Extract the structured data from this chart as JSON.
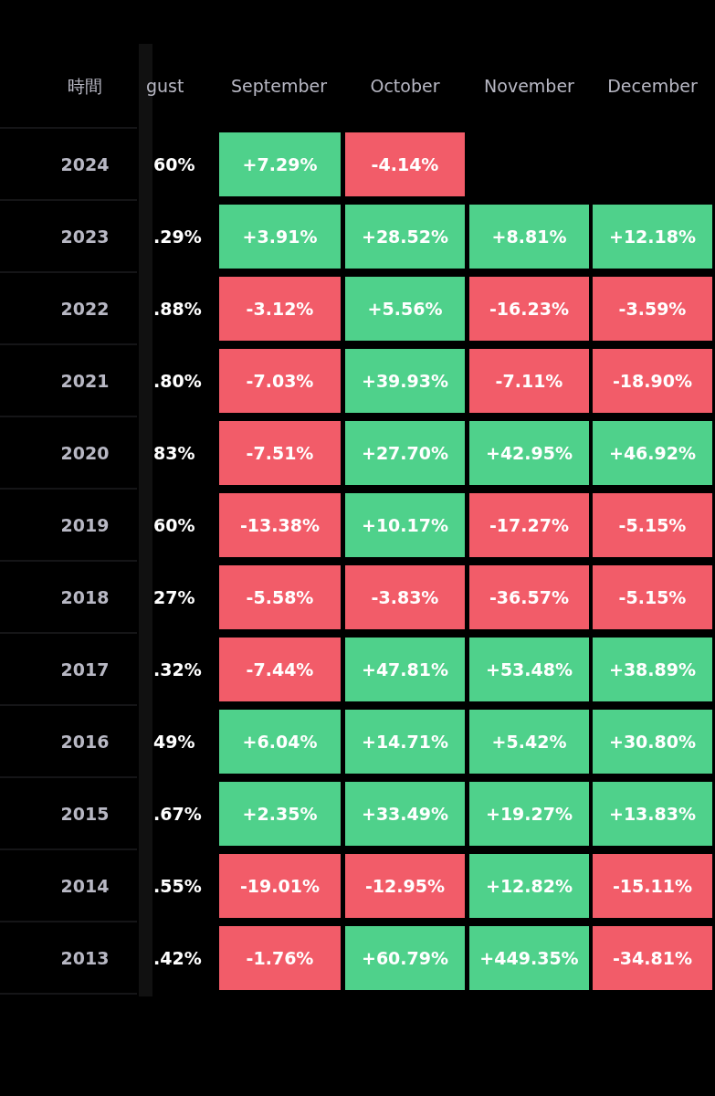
{
  "chart_data": {
    "type": "heatmap",
    "legend_title": "時間",
    "categories": [
      "gust",
      "September",
      "October",
      "November",
      "December"
    ],
    "y_categories": [
      "2024",
      "2023",
      "2022",
      "2021",
      "2020",
      "2019",
      "2018",
      "2017",
      "2016",
      "2015",
      "2014",
      "2013"
    ],
    "colors": [
      "#f25c69",
      "#4fd18b"
    ],
    "cells": [
      [
        null,
        7.29,
        -4.14,
        null,
        null
      ],
      [
        null,
        3.91,
        28.52,
        8.81,
        12.18
      ],
      [
        null,
        -3.12,
        5.56,
        -16.23,
        -3.59
      ],
      [
        null,
        -7.03,
        39.93,
        -7.11,
        -18.9
      ],
      [
        null,
        -7.51,
        27.7,
        42.95,
        46.92
      ],
      [
        null,
        -13.38,
        10.17,
        -17.27,
        -5.15
      ],
      [
        null,
        -5.58,
        -3.83,
        -36.57,
        -5.15
      ],
      [
        null,
        -7.44,
        47.81,
        53.48,
        38.89
      ],
      [
        null,
        6.04,
        14.71,
        5.42,
        30.8
      ],
      [
        null,
        2.35,
        33.49,
        19.27,
        13.83
      ],
      [
        null,
        -19.01,
        -12.95,
        12.82,
        -15.11
      ],
      [
        null,
        -1.76,
        60.79,
        449.35,
        -34.81
      ]
    ],
    "cell_labels": [
      [
        "60%",
        "+7.29%",
        "-4.14%",
        null,
        null
      ],
      [
        ".29%",
        "+3.91%",
        "+28.52%",
        "+8.81%",
        "+12.18%"
      ],
      [
        ".88%",
        "-3.12%",
        "+5.56%",
        "-16.23%",
        "-3.59%"
      ],
      [
        ".80%",
        "-7.03%",
        "+39.93%",
        "-7.11%",
        "-18.90%"
      ],
      [
        "83%",
        "-7.51%",
        "+27.70%",
        "+42.95%",
        "+46.92%"
      ],
      [
        "60%",
        "-13.38%",
        "+10.17%",
        "-17.27%",
        "-5.15%"
      ],
      [
        "27%",
        "-5.58%",
        "-3.83%",
        "-36.57%",
        "-5.15%"
      ],
      [
        ".32%",
        "-7.44%",
        "+47.81%",
        "+53.48%",
        "+38.89%"
      ],
      [
        "49%",
        "+6.04%",
        "+14.71%",
        "+5.42%",
        "+30.80%"
      ],
      [
        ".67%",
        "+2.35%",
        "+33.49%",
        "+19.27%",
        "+13.83%"
      ],
      [
        ".55%",
        "-19.01%",
        "-12.95%",
        "+12.82%",
        "-15.11%"
      ],
      [
        ".42%",
        "-1.76%",
        "+60.79%",
        "+449.35%",
        "-34.81%"
      ]
    ]
  }
}
